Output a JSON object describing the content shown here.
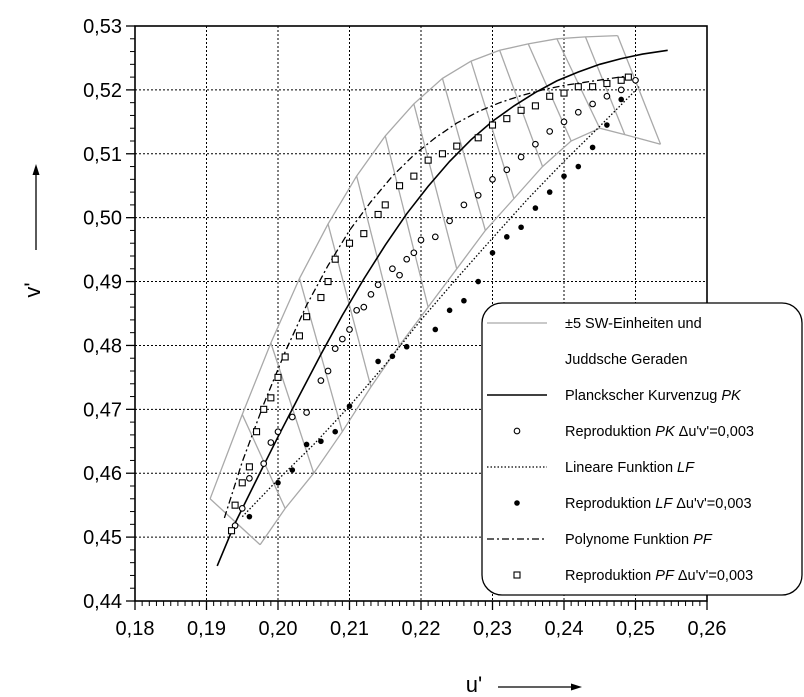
{
  "chart_data": {
    "type": "scatter",
    "title": "",
    "xlabel": "u'",
    "ylabel": "v'",
    "xlim": [
      0.18,
      0.26
    ],
    "ylim": [
      0.44,
      0.53
    ],
    "x_ticks": [
      "0,18",
      "0,19",
      "0,20",
      "0,21",
      "0,22",
      "0,23",
      "0,24",
      "0,25",
      "0,26"
    ],
    "y_ticks": [
      "0,44",
      "0,45",
      "0,46",
      "0,47",
      "0,48",
      "0,49",
      "0,50",
      "0,51",
      "0,52",
      "0,53"
    ],
    "grid": true,
    "legend_position": "bottom-right",
    "legend": [
      {
        "label": "±5 SW-Einheiten und",
        "symbol": "line-gray"
      },
      {
        "label": "Juddsche Geraden",
        "symbol": "none"
      },
      {
        "label": "Planckscher Kurvenzug ",
        "italic": "PK",
        "symbol": "line-solid"
      },
      {
        "label": "Reproduktion ",
        "italic": "PK",
        "suffix": "  Δu'v'=0,003",
        "symbol": "open-circle"
      },
      {
        "label": "Lineare Funktion ",
        "italic": "LF",
        "symbol": "line-dotted"
      },
      {
        "label": "Reproduktion ",
        "italic": "LF",
        "suffix": "  Δu'v'=0,003",
        "symbol": "filled-circle"
      },
      {
        "label": "Polynome Funktion ",
        "italic": "PF",
        "symbol": "line-dashdot"
      },
      {
        "label": "Reproduktion ",
        "italic": "PF",
        "suffix": "  Δu'v'=0,003",
        "symbol": "open-square"
      }
    ],
    "series": [
      {
        "name": "Planckscher Kurvenzug PK",
        "style": "line-solid",
        "x": [
          0.1915,
          0.194,
          0.197,
          0.2,
          0.203,
          0.206,
          0.209,
          0.212,
          0.215,
          0.218,
          0.221,
          0.224,
          0.227,
          0.23,
          0.233,
          0.236,
          0.239,
          0.242,
          0.245,
          0.248,
          0.251,
          0.2545
        ],
        "y": [
          0.4455,
          0.4522,
          0.459,
          0.4657,
          0.4722,
          0.4786,
          0.4847,
          0.4904,
          0.4957,
          0.5006,
          0.5049,
          0.5088,
          0.5122,
          0.5151,
          0.5175,
          0.5196,
          0.5214,
          0.5228,
          0.524,
          0.5249,
          0.5256,
          0.5262
        ]
      },
      {
        "name": "Lineare Funktion LF",
        "style": "line-dotted",
        "x": [
          0.195,
          0.2,
          0.205,
          0.21,
          0.215,
          0.22,
          0.225,
          0.23,
          0.235,
          0.24,
          0.245,
          0.2505
        ],
        "y": [
          0.4532,
          0.459,
          0.4645,
          0.4705,
          0.477,
          0.484,
          0.4905,
          0.4968,
          0.503,
          0.5088,
          0.5143,
          0.5205
        ]
      },
      {
        "name": "Polynome Funktion PF",
        "style": "line-dashdot",
        "x": [
          0.1925,
          0.195,
          0.198,
          0.201,
          0.204,
          0.207,
          0.21,
          0.213,
          0.216,
          0.219,
          0.222,
          0.225,
          0.228,
          0.231,
          0.234,
          0.237,
          0.24,
          0.243,
          0.246,
          0.249
        ],
        "y": [
          0.453,
          0.4618,
          0.4708,
          0.479,
          0.4863,
          0.4925,
          0.498,
          0.5025,
          0.5065,
          0.5098,
          0.5125,
          0.5148,
          0.5166,
          0.518,
          0.5191,
          0.52,
          0.5207,
          0.5212,
          0.5217,
          0.5222
        ]
      },
      {
        "name": "Reproduktion PK",
        "style": "open-circle",
        "x": [
          0.194,
          0.195,
          0.196,
          0.198,
          0.199,
          0.2,
          0.202,
          0.204,
          0.206,
          0.207,
          0.208,
          0.209,
          0.21,
          0.211,
          0.212,
          0.213,
          0.214,
          0.216,
          0.217,
          0.218,
          0.219,
          0.22,
          0.222,
          0.224,
          0.226,
          0.228,
          0.23,
          0.232,
          0.234,
          0.236,
          0.238,
          0.24,
          0.242,
          0.244,
          0.246,
          0.248,
          0.25
        ],
        "y": [
          0.4518,
          0.4545,
          0.4592,
          0.4615,
          0.4648,
          0.4665,
          0.4688,
          0.4695,
          0.4745,
          0.476,
          0.4795,
          0.481,
          0.4825,
          0.4855,
          0.486,
          0.488,
          0.4895,
          0.492,
          0.491,
          0.4935,
          0.4945,
          0.4965,
          0.497,
          0.4995,
          0.502,
          0.5035,
          0.506,
          0.5075,
          0.5095,
          0.5115,
          0.5135,
          0.515,
          0.5165,
          0.5178,
          0.519,
          0.52,
          0.5215
        ]
      },
      {
        "name": "Reproduktion LF",
        "style": "filled-circle",
        "x": [
          0.196,
          0.2,
          0.202,
          0.204,
          0.206,
          0.208,
          0.21,
          0.214,
          0.216,
          0.218,
          0.222,
          0.224,
          0.226,
          0.228,
          0.23,
          0.232,
          0.234,
          0.236,
          0.238,
          0.24,
          0.242,
          0.244,
          0.246,
          0.248
        ],
        "y": [
          0.4532,
          0.4585,
          0.4605,
          0.4645,
          0.465,
          0.4665,
          0.4705,
          0.4775,
          0.4783,
          0.4798,
          0.4825,
          0.4855,
          0.487,
          0.49,
          0.4945,
          0.497,
          0.4985,
          0.5015,
          0.504,
          0.5065,
          0.508,
          0.511,
          0.5145,
          0.5185
        ]
      },
      {
        "name": "Reproduktion PF",
        "style": "open-square",
        "x": [
          0.1935,
          0.194,
          0.195,
          0.196,
          0.197,
          0.198,
          0.199,
          0.2,
          0.201,
          0.203,
          0.204,
          0.206,
          0.207,
          0.208,
          0.21,
          0.212,
          0.214,
          0.215,
          0.217,
          0.219,
          0.221,
          0.223,
          0.225,
          0.228,
          0.23,
          0.232,
          0.234,
          0.236,
          0.238,
          0.24,
          0.242,
          0.244,
          0.246,
          0.248,
          0.249
        ],
        "y": [
          0.451,
          0.455,
          0.4585,
          0.461,
          0.4665,
          0.47,
          0.4718,
          0.475,
          0.4782,
          0.4815,
          0.4845,
          0.4875,
          0.49,
          0.4935,
          0.496,
          0.4975,
          0.5005,
          0.502,
          0.505,
          0.5065,
          0.509,
          0.51,
          0.5112,
          0.5125,
          0.5145,
          0.5155,
          0.5168,
          0.5175,
          0.519,
          0.5195,
          0.5205,
          0.5205,
          0.521,
          0.5215,
          0.522
        ]
      }
    ],
    "tolerance_band": {
      "name": "±5 SW-Einheiten und Juddsche Geraden",
      "style": "line-gray",
      "upper": {
        "x": [
          0.1905,
          0.195,
          0.199,
          0.203,
          0.207,
          0.211,
          0.215,
          0.219,
          0.223,
          0.227,
          0.231,
          0.235,
          0.239,
          0.243,
          0.2475
        ],
        "y": [
          0.456,
          0.4692,
          0.4804,
          0.4905,
          0.499,
          0.5065,
          0.5128,
          0.5178,
          0.5218,
          0.5245,
          0.5262,
          0.5272,
          0.528,
          0.5283,
          0.5285
        ]
      },
      "lower": {
        "x": [
          0.1975,
          0.201,
          0.205,
          0.209,
          0.213,
          0.217,
          0.221,
          0.225,
          0.229,
          0.233,
          0.237,
          0.241,
          0.245,
          0.2485,
          0.2535
        ],
        "y": [
          0.4488,
          0.4545,
          0.46,
          0.4665,
          0.4735,
          0.48,
          0.486,
          0.492,
          0.498,
          0.503,
          0.508,
          0.512,
          0.514,
          0.513,
          0.5115
        ]
      }
    }
  }
}
